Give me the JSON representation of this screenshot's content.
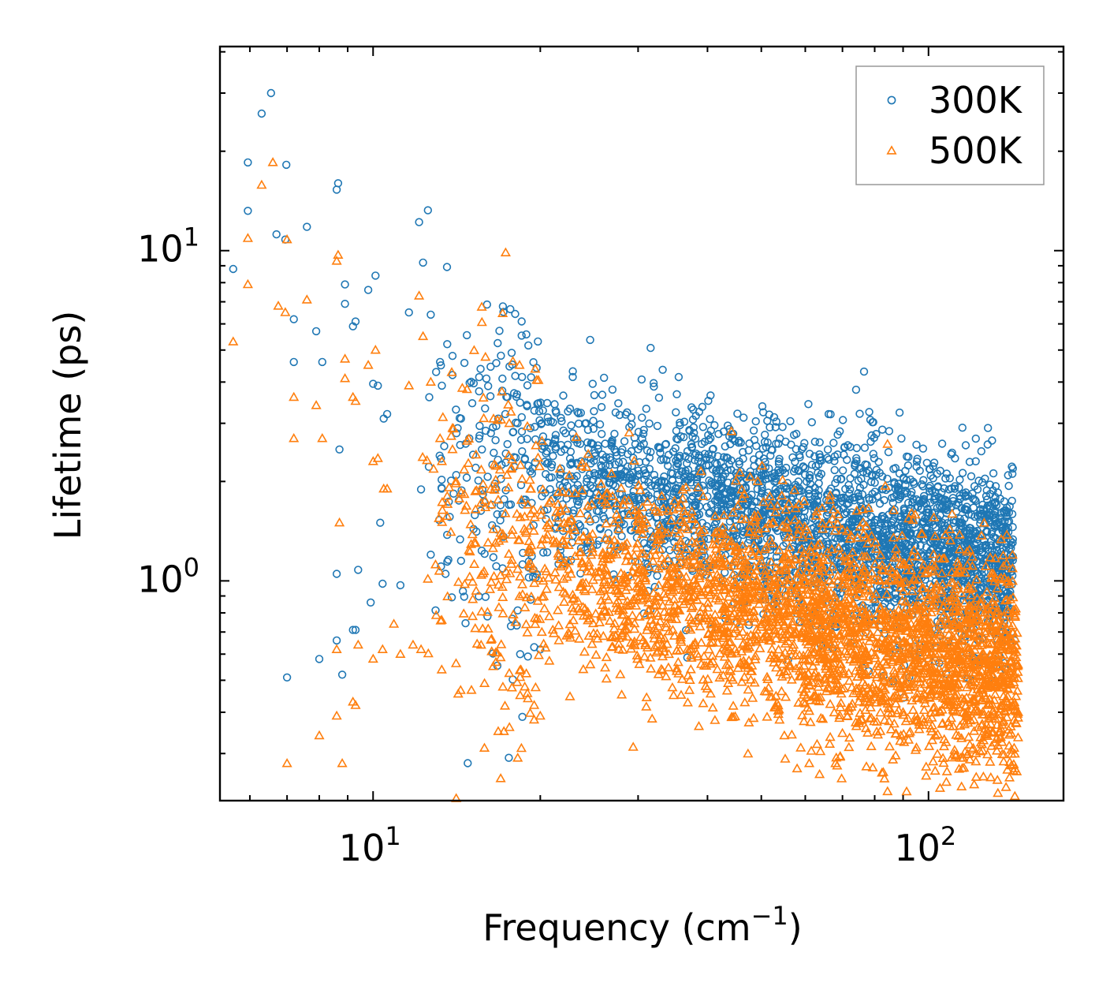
{
  "chart_data": {
    "type": "scatter",
    "title": "",
    "xlabel": "Frequency (cm",
    "xlabel_sup": "−1",
    "xlabel_close": ")",
    "ylabel": "Lifetime (ps)",
    "xscale": "log",
    "yscale": "log",
    "xlim": [
      5.3,
      175
    ],
    "ylim": [
      0.216,
      41.5
    ],
    "x_major_ticks": [
      {
        "value": 10,
        "base": "10",
        "exp": "1"
      },
      {
        "value": 100,
        "base": "10",
        "exp": "2"
      }
    ],
    "y_major_ticks": [
      {
        "value": 1,
        "base": "10",
        "exp": "0"
      },
      {
        "value": 10,
        "base": "10",
        "exp": "1"
      }
    ],
    "legend_position": "top-right",
    "series": [
      {
        "name": "300K",
        "marker": "circle-open",
        "color": "#1f77b4",
        "points": [
          [
            6.55,
            30.0
          ],
          [
            6.3,
            26.0
          ],
          [
            5.95,
            18.5
          ],
          [
            6.98,
            18.2
          ],
          [
            5.95,
            13.2
          ],
          [
            6.7,
            11.2
          ],
          [
            6.95,
            10.8
          ],
          [
            7.6,
            11.8
          ],
          [
            5.6,
            8.8
          ],
          [
            7.2,
            6.2
          ],
          [
            7.2,
            4.6
          ],
          [
            7.9,
            5.7
          ],
          [
            8.1,
            4.6
          ],
          [
            8.6,
            15.3
          ],
          [
            8.65,
            16.0
          ],
          [
            8.9,
            7.9
          ],
          [
            8.9,
            6.9
          ],
          [
            9.2,
            5.9
          ],
          [
            9.3,
            6.1
          ],
          [
            9.8,
            7.6
          ],
          [
            10.1,
            8.4
          ],
          [
            10.0,
            3.95
          ],
          [
            10.2,
            3.9
          ],
          [
            10.45,
            3.1
          ],
          [
            10.6,
            3.2
          ],
          [
            8.7,
            2.5
          ],
          [
            11.6,
            6.5
          ],
          [
            12.1,
            12.2
          ],
          [
            12.3,
            9.2
          ],
          [
            12.7,
            6.4
          ],
          [
            13.2,
            4.6
          ],
          [
            13.3,
            3.9
          ],
          [
            13.9,
            4.8
          ],
          [
            13.9,
            4.2
          ],
          [
            14.1,
            3.3
          ],
          [
            14.4,
            3.1
          ],
          [
            14.2,
            2.9
          ],
          [
            14.9,
            2.7
          ],
          [
            15.3,
            2.2
          ],
          [
            15.7,
            2.5
          ],
          [
            16.3,
            2.8
          ],
          [
            16.8,
            3.1
          ],
          [
            17.3,
            3.2
          ],
          [
            18.2,
            3.0
          ],
          [
            19.2,
            2.9
          ],
          [
            21.1,
            2.6
          ],
          [
            22.2,
            2.8
          ],
          [
            23.6,
            2.6
          ],
          [
            27.2,
            2.5
          ],
          [
            38.5,
            2.3
          ],
          [
            11.2,
            0.97
          ],
          [
            10.3,
            1.5
          ],
          [
            9.4,
            1.08
          ],
          [
            8.6,
            1.05
          ],
          [
            10.4,
            0.98
          ],
          [
            9.9,
            0.86
          ],
          [
            9.3,
            0.71
          ],
          [
            9.2,
            0.71
          ],
          [
            8.6,
            0.66
          ],
          [
            8.0,
            0.58
          ],
          [
            8.8,
            0.52
          ],
          [
            7.0,
            0.51
          ],
          [
            13.5,
            1.05
          ],
          [
            14.4,
            1.15
          ],
          [
            12.7,
            1.2
          ],
          [
            18.4,
            0.6
          ],
          [
            19.0,
            0.59
          ],
          [
            19.5,
            0.63
          ],
          [
            20.0,
            0.62
          ],
          [
            98.0,
            1.4
          ],
          [
            95.0,
            0.88
          ],
          [
            107.0,
            0.9
          ],
          [
            113.0,
            1.0
          ],
          [
            123.0,
            1.0
          ],
          [
            130.0,
            0.95
          ],
          [
            141.0,
            0.7
          ],
          [
            143.0,
            0.66
          ],
          [
            50.0,
            1.6
          ],
          [
            57.0,
            1.45
          ],
          [
            70.0,
            1.3
          ],
          [
            84.0,
            1.2
          ],
          [
            60.0,
            1.3
          ],
          [
            45.0,
            1.75
          ],
          [
            40.0,
            1.8
          ],
          [
            33.0,
            2.0
          ]
        ],
        "band": {
          "x_from": 12,
          "x_to": 142,
          "log_center_at_20": 0.33,
          "slope": -0.335,
          "log_spread": 0.14,
          "count": 3000
        }
      },
      {
        "name": "500K",
        "marker": "triangle-open",
        "color": "#ff7f0e",
        "points": [
          [
            6.6,
            18.5
          ],
          [
            6.3,
            15.8
          ],
          [
            5.95,
            10.9
          ],
          [
            7.0,
            10.8
          ],
          [
            5.95,
            7.9
          ],
          [
            6.75,
            6.8
          ],
          [
            6.95,
            6.5
          ],
          [
            7.6,
            7.1
          ],
          [
            5.6,
            5.3
          ],
          [
            7.2,
            3.6
          ],
          [
            7.2,
            2.7
          ],
          [
            7.9,
            3.4
          ],
          [
            8.1,
            2.7
          ],
          [
            8.6,
            9.3
          ],
          [
            8.65,
            9.7
          ],
          [
            8.9,
            4.7
          ],
          [
            8.9,
            4.1
          ],
          [
            9.2,
            3.6
          ],
          [
            9.3,
            3.5
          ],
          [
            9.8,
            4.5
          ],
          [
            10.1,
            5.0
          ],
          [
            10.0,
            2.3
          ],
          [
            10.2,
            2.35
          ],
          [
            10.45,
            1.9
          ],
          [
            10.6,
            1.9
          ],
          [
            8.7,
            1.5
          ],
          [
            11.6,
            3.9
          ],
          [
            12.1,
            7.3
          ],
          [
            12.3,
            5.5
          ],
          [
            12.7,
            4.0
          ],
          [
            13.2,
            2.7
          ],
          [
            13.3,
            2.3
          ],
          [
            13.9,
            2.9
          ],
          [
            13.9,
            2.5
          ],
          [
            14.1,
            2.0
          ],
          [
            14.4,
            1.85
          ],
          [
            15.3,
            1.3
          ],
          [
            16.3,
            1.7
          ],
          [
            17.3,
            1.6
          ],
          [
            19.2,
            1.9
          ],
          [
            23.6,
            1.6
          ],
          [
            27.2,
            1.5
          ],
          [
            39.0,
            1.4
          ],
          [
            7.0,
            0.28
          ],
          [
            8.0,
            0.34
          ],
          [
            8.8,
            0.28
          ],
          [
            8.6,
            0.39
          ],
          [
            9.3,
            0.42
          ],
          [
            9.2,
            0.43
          ],
          [
            8.6,
            0.62
          ],
          [
            9.4,
            0.64
          ],
          [
            10.0,
            0.58
          ],
          [
            10.4,
            0.62
          ],
          [
            11.2,
            0.6
          ],
          [
            10.9,
            0.74
          ],
          [
            11.8,
            0.64
          ],
          [
            12.2,
            0.62
          ],
          [
            16.8,
            0.35
          ],
          [
            17.2,
            0.35
          ],
          [
            17.6,
            0.36
          ],
          [
            18.4,
            0.45
          ],
          [
            19.0,
            0.44
          ],
          [
            19.5,
            0.42
          ],
          [
            20.0,
            0.39
          ],
          [
            58.0,
            0.27
          ],
          [
            68.0,
            0.28
          ],
          [
            61.0,
            0.28
          ],
          [
            55.0,
            0.34
          ],
          [
            63.0,
            0.32
          ],
          [
            75.0,
            0.37
          ],
          [
            90.0,
            0.4
          ],
          [
            100.0,
            0.38
          ],
          [
            143.0,
            0.42
          ],
          [
            145.0,
            0.4
          ],
          [
            140.0,
            0.57
          ]
        ],
        "band": {
          "x_from": 12,
          "x_to": 145,
          "log_center_at_20": 0.065,
          "slope": -0.41,
          "log_spread": 0.16,
          "count": 3200
        }
      }
    ]
  }
}
